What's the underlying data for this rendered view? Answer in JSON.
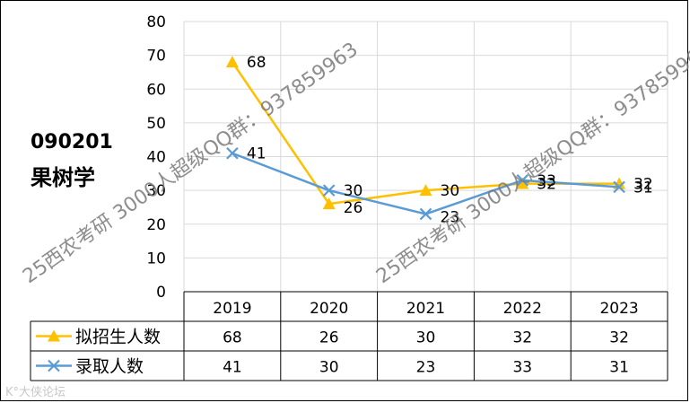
{
  "side_title": {
    "code": "090201",
    "subject": "果树学"
  },
  "watermark": "25西农考研 3000人超级QQ群：937859963",
  "brand_mark": "K°大侠论坛",
  "colors": {
    "plan_series": "#FFC000",
    "admit_series": "#5B9BD5",
    "grid": "#d9d9d9",
    "text": "#000000"
  },
  "chart_data": {
    "type": "line",
    "categories": [
      "2019",
      "2020",
      "2021",
      "2022",
      "2023"
    ],
    "ylim": [
      0,
      80
    ],
    "yticks": [
      0,
      10,
      20,
      30,
      40,
      50,
      60,
      70,
      80
    ],
    "grid": true,
    "legend": "data-table",
    "series": [
      {
        "name": "拟招生人数",
        "marker": "triangle",
        "values": [
          68,
          26,
          30,
          32,
          32
        ]
      },
      {
        "name": "录取人数",
        "marker": "x",
        "values": [
          41,
          30,
          23,
          33,
          31
        ]
      }
    ]
  }
}
